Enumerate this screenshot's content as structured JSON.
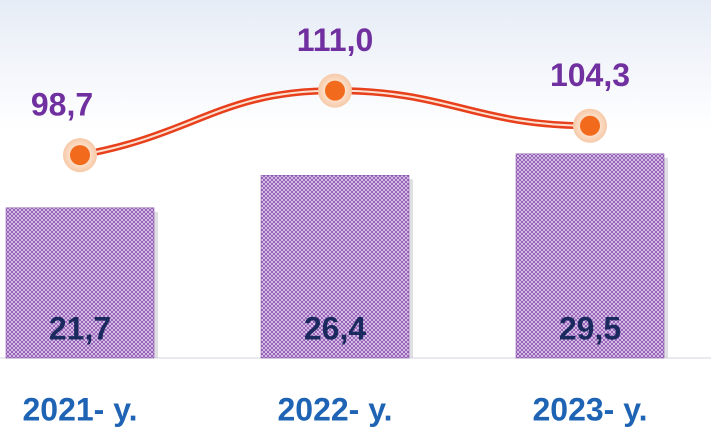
{
  "chart_data": {
    "type": "bar_line",
    "categories": [
      "2021- y.",
      "2022- y.",
      "2023- y."
    ],
    "series": [
      {
        "type": "bar",
        "color": "#7b3fa0",
        "values": [
          21.7,
          26.4,
          29.5
        ],
        "value_labels": [
          "21,7",
          "26,4",
          "29,5"
        ]
      },
      {
        "type": "line",
        "axis": "y2",
        "color": "#e8401c",
        "values": [
          98.7,
          111.0,
          104.3
        ],
        "value_labels": [
          "98,7",
          "111,0",
          "104,3"
        ]
      }
    ],
    "ylim": [
      0,
      50
    ],
    "y2lim": [
      60,
      126
    ]
  }
}
